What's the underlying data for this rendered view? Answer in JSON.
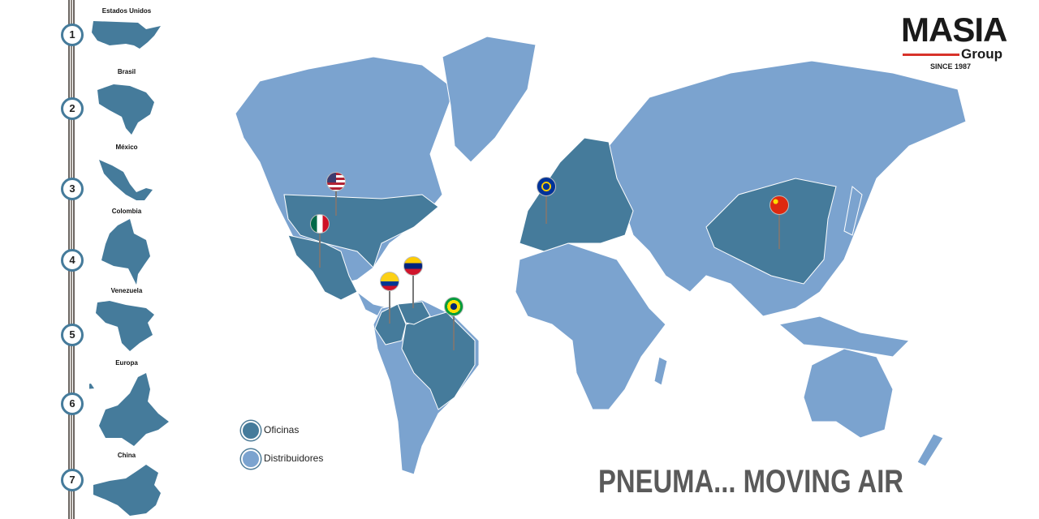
{
  "sidebar": {
    "items": [
      {
        "number": "1",
        "label": "Estados Unidos"
      },
      {
        "number": "2",
        "label": "Brasil"
      },
      {
        "number": "3",
        "label": "México"
      },
      {
        "number": "4",
        "label": "Colombia"
      },
      {
        "number": "5",
        "label": "Venezuela"
      },
      {
        "number": "6",
        "label": "Europa"
      },
      {
        "number": "7",
        "label": "China"
      }
    ]
  },
  "logo": {
    "title": "MASIA",
    "subtitle": "Group",
    "since": "SINCE 1987"
  },
  "legend": {
    "offices": "Oficinas",
    "distributors": "Distribuidores"
  },
  "slogan": "PNEUMA... MOVING AIR",
  "colors": {
    "offices": "#457b9b",
    "distributors": "#7ba3cf",
    "accent": "#d8322a"
  },
  "pins": [
    "us-flag",
    "mexico-flag",
    "colombia-flag",
    "venezuela-flag",
    "brazil-flag",
    "eu-flag",
    "china-flag"
  ]
}
